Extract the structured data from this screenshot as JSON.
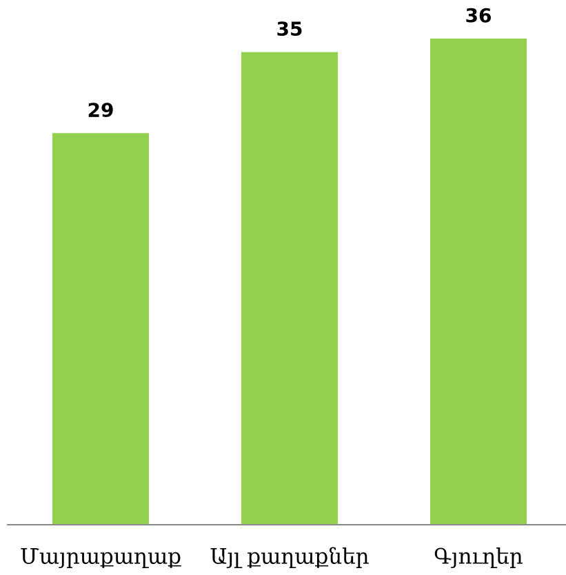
{
  "chart_data": {
    "type": "bar",
    "categories": [
      "Մայրաքաղաք",
      "Այլ քաղաքներ",
      "Գյուղեր"
    ],
    "values": [
      29,
      35,
      36
    ],
    "color": "#92d050",
    "ylim": [
      0,
      36
    ]
  }
}
